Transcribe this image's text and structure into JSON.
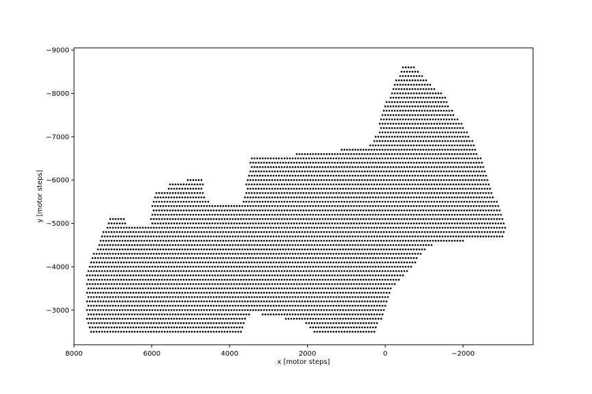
{
  "chart_data": {
    "type": "scatter",
    "title": "",
    "xlabel": "x [motor steps]",
    "ylabel": "y [motor steps]",
    "xlim": [
      8000,
      -3800
    ],
    "ylim": [
      -2200,
      -9050
    ],
    "x_inverted": true,
    "y_inverted": true,
    "grid": false,
    "marker_color": "#000000",
    "xticks": [
      {
        "value": 8000,
        "label": "8000"
      },
      {
        "value": 6000,
        "label": "6000"
      },
      {
        "value": 4000,
        "label": "4000"
      },
      {
        "value": 2000,
        "label": "2000"
      },
      {
        "value": 0,
        "label": "0"
      },
      {
        "value": -2000,
        "label": "−2000"
      }
    ],
    "yticks": [
      {
        "value": -3000,
        "label": "−3000"
      },
      {
        "value": -4000,
        "label": "−4000"
      },
      {
        "value": -5000,
        "label": "−5000"
      },
      {
        "value": -6000,
        "label": "−6000"
      },
      {
        "value": -7000,
        "label": "−7000"
      },
      {
        "value": -8000,
        "label": "−8000"
      },
      {
        "value": -9000,
        "label": "−9000"
      }
    ],
    "point_grid": {
      "x_step": 70,
      "y_step": 100,
      "row_offset_x": 35
    },
    "region_boundary": {
      "top_edge": [
        [
          7700,
          -3800
        ],
        [
          7500,
          -4300
        ],
        [
          7250,
          -4800
        ],
        [
          7100,
          -5100
        ],
        [
          6700,
          -5100
        ],
        [
          6650,
          -4900
        ],
        [
          6050,
          -4900
        ],
        [
          5950,
          -5700
        ],
        [
          5600,
          -5700
        ],
        [
          5550,
          -5900
        ],
        [
          5250,
          -5900
        ],
        [
          5100,
          -6000
        ],
        [
          4700,
          -6000
        ],
        [
          4650,
          -5600
        ],
        [
          4400,
          -5400
        ],
        [
          3700,
          -5400
        ],
        [
          3550,
          -6000
        ],
        [
          3450,
          -6500
        ],
        [
          2600,
          -6500
        ],
        [
          2300,
          -6600
        ],
        [
          1300,
          -6600
        ],
        [
          1150,
          -6700
        ],
        [
          450,
          -6700
        ],
        [
          200,
          -7100
        ],
        [
          100,
          -7500
        ],
        [
          -200,
          -8200
        ],
        [
          -450,
          -8600
        ],
        [
          -600,
          -8700
        ],
        [
          -750,
          -8600
        ],
        [
          -1100,
          -8300
        ],
        [
          -1550,
          -7900
        ],
        [
          -1800,
          -7500
        ],
        [
          -2200,
          -7000
        ],
        [
          -2500,
          -6400
        ],
        [
          -2750,
          -5800
        ],
        [
          -3000,
          -5200
        ],
        [
          -3100,
          -4900
        ]
      ],
      "bottom_edge": [
        [
          -3100,
          -4900
        ],
        [
          -3050,
          -4600
        ],
        [
          -2050,
          -4600
        ],
        [
          -1700,
          -4500
        ],
        [
          -1200,
          -4500
        ],
        [
          -950,
          -4300
        ],
        [
          -600,
          -3900
        ],
        [
          -200,
          -3500
        ],
        [
          0,
          -3000
        ],
        [
          250,
          -2500
        ],
        [
          1300,
          -2400
        ],
        [
          1700,
          -2400
        ],
        [
          2100,
          -2700
        ],
        [
          2600,
          -2800
        ],
        [
          3200,
          -2900
        ],
        [
          3500,
          -2900
        ],
        [
          3650,
          -2500
        ],
        [
          3900,
          -2400
        ],
        [
          4300,
          -2400
        ],
        [
          5000,
          -2400
        ],
        [
          5600,
          -2400
        ],
        [
          6300,
          -2400
        ],
        [
          7000,
          -2400
        ],
        [
          7550,
          -2400
        ],
        [
          7650,
          -2700
        ],
        [
          7700,
          -3000
        ],
        [
          7700,
          -3800
        ]
      ]
    }
  }
}
